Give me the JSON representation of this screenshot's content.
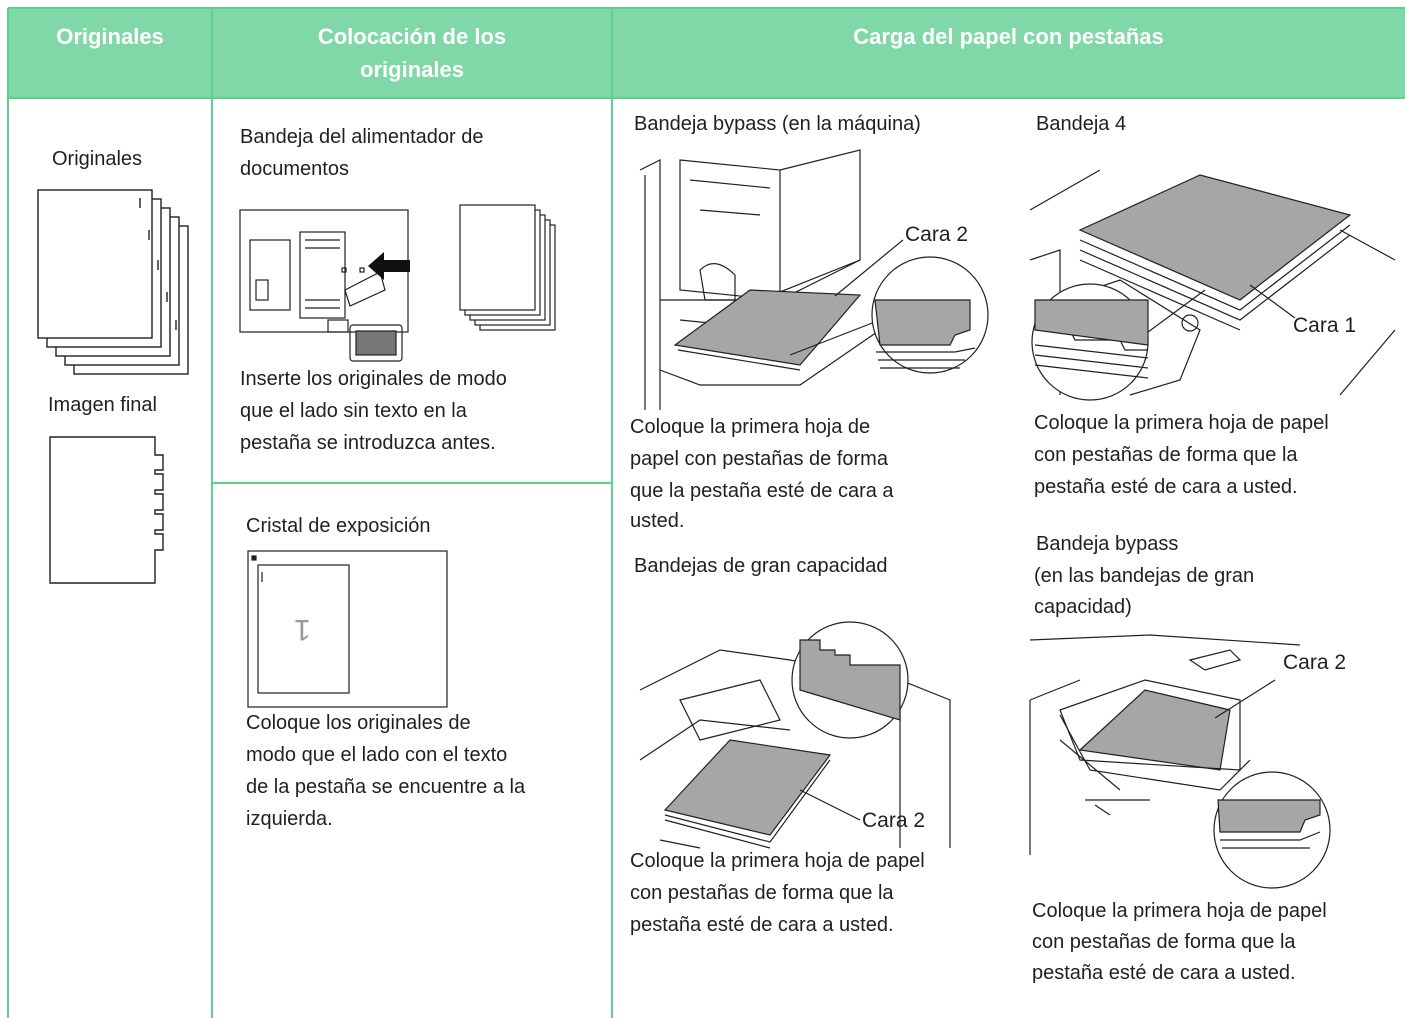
{
  "header": {
    "columns": [
      [
        "Originales"
      ],
      [
        "Colocación de los",
        "originales"
      ],
      [
        "Carga del papel con pestañas"
      ]
    ]
  },
  "originals": {
    "originals_label": "Originales",
    "final_label": "Imagen final"
  },
  "placement": {
    "feeder": {
      "title": [
        "Bandeja del alimentador de",
        "documentos"
      ],
      "description": [
        "Inserte los originales de modo",
        "que el lado sin texto en la",
        "pestaña se introduzca antes."
      ]
    },
    "glass": {
      "title": "Cristal de exposición",
      "page_mark": "1",
      "description": [
        "Coloque los originales de",
        "modo que el lado con el texto",
        "de la pestaña se encuentre a la",
        "izquierda."
      ]
    }
  },
  "loading": {
    "bypass_machine": {
      "title": "Bandeja bypass (en la máquina)",
      "callout": "Cara 2",
      "description": [
        "Coloque la primera hoja de",
        "papel con pestañas de forma",
        "que la pestaña esté de cara a",
        "usted."
      ]
    },
    "large_capacity": {
      "title": "Bandejas de gran capacidad",
      "callout": "Cara 2",
      "description": [
        "Coloque la primera hoja de papel",
        "con pestañas de forma que la",
        "pestaña esté de cara a usted."
      ]
    },
    "tray4": {
      "title": "Bandeja 4",
      "callout": "Cara 1",
      "description": [
        "Coloque la primera hoja de papel",
        "con pestañas de forma que la",
        "pestaña esté de cara a usted."
      ]
    },
    "bypass_lct": {
      "title": [
        "Bandeja bypass",
        "(en las bandejas de gran",
        "capacidad)"
      ],
      "callout": "Cara 2",
      "description": [
        "Coloque la primera hoja de papel",
        "con pestañas de forma que la",
        "pestaña esté de cara a usted."
      ]
    }
  }
}
